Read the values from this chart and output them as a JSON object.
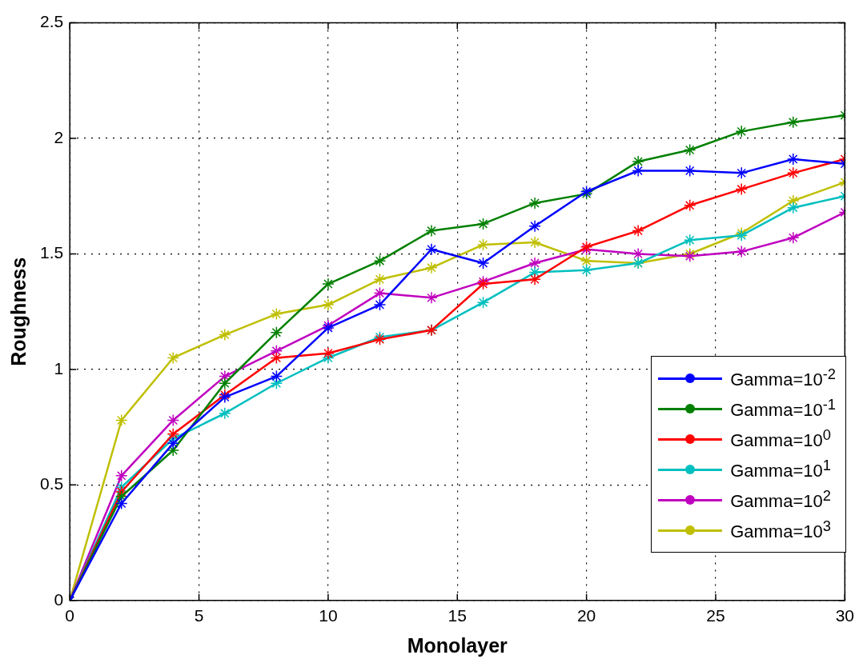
{
  "chart_data": {
    "type": "line",
    "xlabel": "Monolayer",
    "ylabel": "Roughness",
    "x": [
      0,
      2,
      4,
      6,
      8,
      10,
      12,
      14,
      16,
      18,
      20,
      22,
      24,
      26,
      28,
      30
    ],
    "xlim": [
      0,
      30
    ],
    "xticks": [
      0,
      5,
      10,
      15,
      20,
      25,
      30
    ],
    "ylim": [
      0,
      2.5
    ],
    "yticks": [
      0,
      0.5,
      1,
      1.5,
      2,
      2.5
    ],
    "grid": true,
    "legend": "bottom right",
    "marker": "cross",
    "line_style": "solid",
    "series": [
      {
        "name": "Gamma=10$^{-2}$",
        "color": "#0000ff",
        "values": [
          0,
          0.42,
          0.68,
          0.88,
          0.97,
          1.18,
          1.28,
          1.52,
          1.46,
          1.62,
          1.77,
          1.86,
          1.86,
          1.85,
          1.91,
          1.89
        ]
      },
      {
        "name": "Gamma=10$^{-1}$",
        "color": "#008000",
        "values": [
          0,
          0.45,
          0.65,
          0.94,
          1.16,
          1.37,
          1.47,
          1.6,
          1.63,
          1.72,
          1.76,
          1.9,
          1.95,
          2.03,
          2.07,
          2.1
        ]
      },
      {
        "name": "Gamma=10$^{0}$",
        "color": "#ff0000",
        "values": [
          0,
          0.47,
          0.72,
          0.89,
          1.05,
          1.07,
          1.13,
          1.17,
          1.37,
          1.39,
          1.53,
          1.6,
          1.71,
          1.78,
          1.85,
          1.91
        ]
      },
      {
        "name": "Gamma=10$^{1}$",
        "color": "#00bfbf",
        "values": [
          0,
          0.49,
          0.7,
          0.81,
          0.94,
          1.05,
          1.14,
          1.17,
          1.29,
          1.42,
          1.43,
          1.46,
          1.56,
          1.58,
          1.7,
          1.75
        ]
      },
      {
        "name": "Gamma=10$^{2}$",
        "color": "#bf00bf",
        "values": [
          0,
          0.54,
          0.78,
          0.97,
          1.08,
          1.19,
          1.33,
          1.31,
          1.38,
          1.46,
          1.52,
          1.5,
          1.49,
          1.51,
          1.57,
          1.68
        ]
      },
      {
        "name": "Gamma=10$^{3}$",
        "color": "#bfbf00",
        "values": [
          0,
          0.78,
          1.05,
          1.15,
          1.24,
          1.28,
          1.39,
          1.44,
          1.54,
          1.55,
          1.47,
          1.46,
          1.5,
          1.59,
          1.73,
          1.81
        ]
      }
    ]
  }
}
